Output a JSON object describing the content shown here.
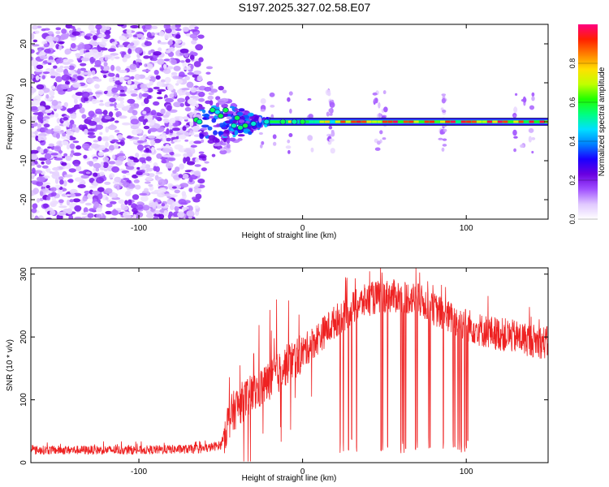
{
  "page_title": "S197.2025.327.02.58.E07",
  "chart_data": [
    {
      "type": "heatmap",
      "name": "spectrogram",
      "xlabel": "Height of straight line (km)",
      "ylabel": "Frequency (Hz)",
      "xlim": [
        -166,
        150
      ],
      "ylim": [
        -25,
        25
      ],
      "xticks": [
        -100,
        0,
        100
      ],
      "yticks": [
        -20,
        -10,
        0,
        10,
        20
      ],
      "colorbar": {
        "label": "Normalized spectral amplitude",
        "range": [
          0,
          1
        ],
        "ticks": [
          0.0,
          0.2,
          0.4,
          0.6,
          0.8
        ],
        "tick_labels": [
          "0.0",
          "0.2",
          "0.4",
          "0.6",
          "0.8"
        ],
        "colors": [
          "#ffffff",
          "#e0c8ff",
          "#a050ff",
          "#6a00e0",
          "#1a00ff",
          "#0080ff",
          "#00e0ff",
          "#00ff80",
          "#20ff00",
          "#c0ff00",
          "#ffe000",
          "#ff8000",
          "#ff2000",
          "#ff0080"
        ]
      },
      "features": {
        "noise_region_x": [
          -166,
          -62
        ],
        "transition_region_x": [
          -62,
          -20
        ],
        "carrier_line_x": [
          -20,
          150
        ],
        "carrier_frequency_hz": 0
      }
    },
    {
      "type": "line",
      "name": "snr",
      "xlabel": "Height of straight line (km)",
      "ylabel": "SNR (10 * v/v)",
      "xlim": [
        -166,
        150
      ],
      "ylim": [
        0,
        310
      ],
      "xticks": [
        -100,
        0,
        100
      ],
      "yticks": [
        0,
        100,
        200,
        300
      ],
      "color": "#ee2222",
      "envelope": {
        "x": [
          -166,
          -100,
          -60,
          -50,
          -45,
          -40,
          -30,
          -20,
          -10,
          0,
          10,
          20,
          30,
          40,
          50,
          60,
          70,
          80,
          90,
          100,
          110,
          120,
          130,
          140,
          150
        ],
        "y": [
          20,
          20,
          22,
          28,
          70,
          90,
          110,
          130,
          155,
          175,
          200,
          225,
          245,
          260,
          265,
          265,
          260,
          245,
          230,
          220,
          210,
          205,
          200,
          195,
          190
        ]
      },
      "dropouts_x": [
        23,
        25,
        28,
        30,
        33,
        48,
        49,
        52,
        60,
        61,
        62,
        63,
        69,
        70,
        77,
        78,
        86,
        92,
        93,
        95,
        96,
        97,
        99,
        100,
        101
      ]
    }
  ]
}
